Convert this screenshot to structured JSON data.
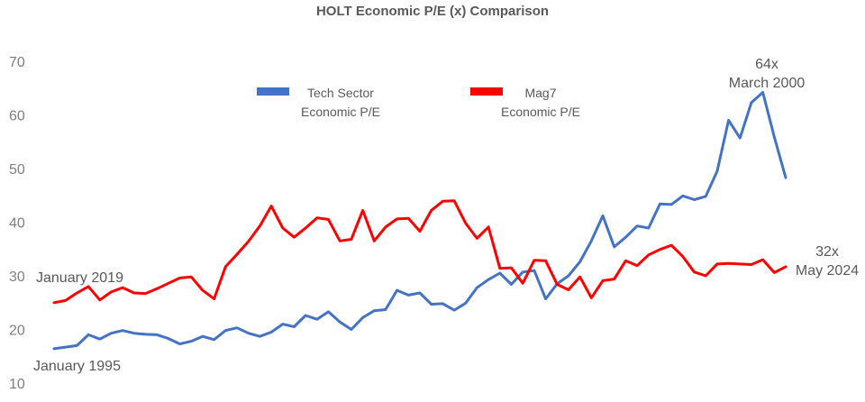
{
  "chart_data": {
    "type": "line",
    "title": "HOLT Economic P/E (x) Comparison",
    "ylim": [
      10,
      70
    ],
    "yticks": [
      10,
      20,
      30,
      40,
      50,
      60,
      70
    ],
    "grid": false,
    "legend_position": "top-center",
    "series": [
      {
        "name": "Tech Sector Economic P/E",
        "legend_lines": [
          "Tech Sector",
          "Economic P/E"
        ],
        "color": "#4472C4",
        "start_label": "January 1995",
        "end_annotation": [
          "64x",
          "March 2000"
        ],
        "values": [
          16.4,
          16.7,
          17.0,
          19.0,
          18.2,
          19.3,
          19.8,
          19.3,
          19.1,
          19.0,
          18.3,
          17.3,
          17.8,
          18.7,
          18.1,
          19.8,
          20.3,
          19.3,
          18.7,
          19.5,
          21.0,
          20.5,
          22.6,
          21.9,
          23.3,
          21.4,
          20.0,
          22.2,
          23.5,
          23.7,
          27.3,
          26.4,
          26.8,
          24.7,
          24.8,
          23.6,
          24.9,
          27.8,
          29.3,
          30.5,
          28.4,
          30.7,
          31.0,
          25.7,
          28.5,
          30.0,
          32.6,
          36.5,
          41.2,
          35.4,
          37.2,
          39.3,
          38.9,
          43.4,
          43.3,
          44.9,
          44.2,
          44.8,
          49.5,
          59.0,
          55.7,
          62.3,
          64.2,
          55.9,
          48.3
        ]
      },
      {
        "name": "Mag7 Economic P/E",
        "legend_lines": [
          "Mag7",
          "Economic P/E"
        ],
        "color": "#FF0000",
        "start_label": "January 2019",
        "end_annotation": [
          "32x",
          "May 2024"
        ],
        "values": [
          25.0,
          25.4,
          26.8,
          28.0,
          25.5,
          27.0,
          27.8,
          26.8,
          26.7,
          27.6,
          28.6,
          29.6,
          29.8,
          27.3,
          25.7,
          31.7,
          34.0,
          36.4,
          39.3,
          43.0,
          38.9,
          37.2,
          38.9,
          40.8,
          40.5,
          36.5,
          36.8,
          42.2,
          36.5,
          39.1,
          40.6,
          40.7,
          38.3,
          42.2,
          43.9,
          44.0,
          39.8,
          37.0,
          39.1,
          31.4,
          31.5,
          28.6,
          32.9,
          32.8,
          28.4,
          27.4,
          29.8,
          25.9,
          29.1,
          29.4,
          32.8,
          31.9,
          33.9,
          34.9,
          35.7,
          33.6,
          30.7,
          30.0,
          32.2,
          32.3,
          32.2,
          32.1,
          33.0,
          30.6,
          31.7
        ]
      }
    ]
  }
}
